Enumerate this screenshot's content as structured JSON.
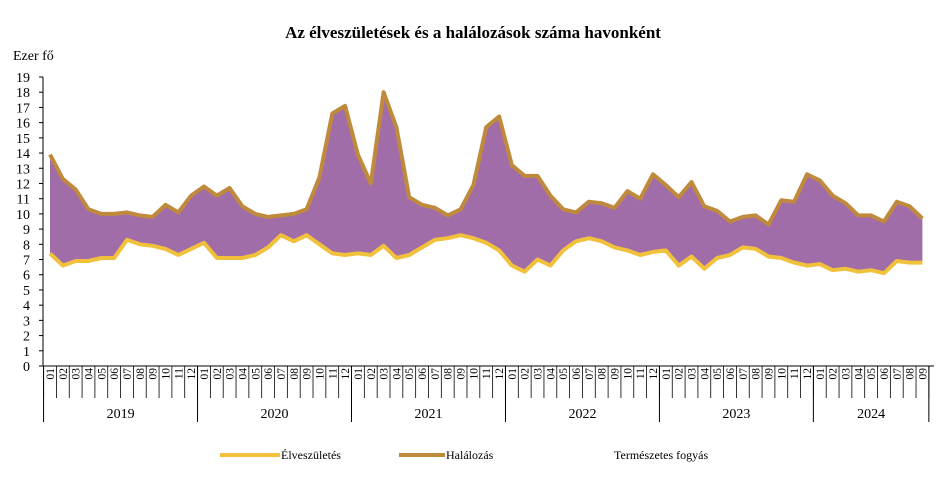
{
  "chart_data": {
    "type": "area",
    "title": "Az élveszületések és a halálozások száma havonként",
    "ylabel": "Ezer fő",
    "ylim": [
      0,
      19
    ],
    "yticks": [
      0,
      1,
      2,
      3,
      4,
      5,
      6,
      7,
      8,
      9,
      10,
      11,
      12,
      13,
      14,
      15,
      16,
      17,
      18,
      19
    ],
    "years": [
      "2019",
      "2020",
      "2021",
      "2022",
      "2023",
      "2024"
    ],
    "month_labels": [
      "01",
      "02",
      "03",
      "04",
      "05",
      "06",
      "07",
      "08",
      "09",
      "10",
      "11",
      "12"
    ],
    "x": [
      "2019-01",
      "2019-02",
      "2019-03",
      "2019-04",
      "2019-05",
      "2019-06",
      "2019-07",
      "2019-08",
      "2019-09",
      "2019-10",
      "2019-11",
      "2019-12",
      "2020-01",
      "2020-02",
      "2020-03",
      "2020-04",
      "2020-05",
      "2020-06",
      "2020-07",
      "2020-08",
      "2020-09",
      "2020-10",
      "2020-11",
      "2020-12",
      "2021-01",
      "2021-02",
      "2021-03",
      "2021-04",
      "2021-05",
      "2021-06",
      "2021-07",
      "2021-08",
      "2021-09",
      "2021-10",
      "2021-11",
      "2021-12",
      "2022-01",
      "2022-02",
      "2022-03",
      "2022-04",
      "2022-05",
      "2022-06",
      "2022-07",
      "2022-08",
      "2022-09",
      "2022-10",
      "2022-11",
      "2022-12",
      "2023-01",
      "2023-02",
      "2023-03",
      "2023-04",
      "2023-05",
      "2023-06",
      "2023-07",
      "2023-08",
      "2023-09",
      "2023-10",
      "2023-11",
      "2023-12",
      "2024-01",
      "2024-02",
      "2024-03",
      "2024-04",
      "2024-05",
      "2024-06",
      "2024-07",
      "2024-08",
      "2024-09"
    ],
    "series": [
      {
        "name": "Élveszületés",
        "color": "#F2C13C",
        "values": [
          7.4,
          6.6,
          6.9,
          6.9,
          7.1,
          7.1,
          8.3,
          8.0,
          7.9,
          7.7,
          7.3,
          7.7,
          8.1,
          7.1,
          7.1,
          7.1,
          7.3,
          7.8,
          8.6,
          8.2,
          8.6,
          8.0,
          7.4,
          7.3,
          7.4,
          7.3,
          7.9,
          7.1,
          7.3,
          7.8,
          8.3,
          8.4,
          8.6,
          8.4,
          8.1,
          7.6,
          6.6,
          6.2,
          7.0,
          6.6,
          7.6,
          8.2,
          8.4,
          8.2,
          7.8,
          7.6,
          7.3,
          7.5,
          7.6,
          6.6,
          7.2,
          6.4,
          7.1,
          7.3,
          7.8,
          7.7,
          7.2,
          7.1,
          6.8,
          6.6,
          6.7,
          6.3,
          6.4,
          6.2,
          6.3,
          6.1,
          6.9,
          6.8,
          6.8
        ]
      },
      {
        "name": "Halálozás",
        "color": "#C08A3C",
        "values": [
          13.9,
          12.3,
          11.6,
          10.3,
          10.0,
          10.0,
          10.1,
          9.9,
          9.8,
          10.6,
          10.1,
          11.2,
          11.8,
          11.2,
          11.7,
          10.5,
          10.0,
          9.8,
          9.9,
          10.0,
          10.3,
          12.4,
          16.6,
          17.1,
          13.9,
          12.0,
          18.0,
          15.7,
          11.1,
          10.6,
          10.4,
          9.9,
          10.3,
          11.9,
          15.7,
          16.4,
          13.2,
          12.5,
          12.5,
          11.2,
          10.3,
          10.1,
          10.8,
          10.7,
          10.4,
          11.5,
          11.0,
          12.6,
          11.9,
          11.1,
          12.1,
          10.5,
          10.2,
          9.5,
          9.8,
          9.9,
          9.3,
          10.9,
          10.8,
          12.6,
          12.2,
          11.2,
          10.7,
          9.9,
          9.9,
          9.5,
          10.8,
          10.5,
          9.7
        ]
      },
      {
        "name": "Természetes fogyás",
        "color": "#A16DA8",
        "values": "difference of Halálozás and Élveszületés"
      }
    ],
    "legend_position": "bottom"
  }
}
